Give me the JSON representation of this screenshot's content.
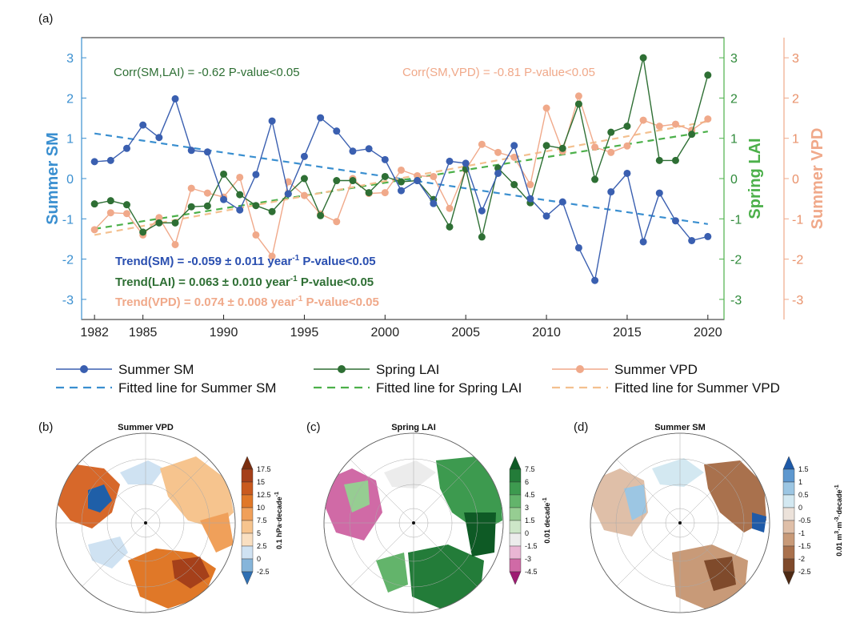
{
  "panel_labels": {
    "a": "(a)",
    "b": "(b)",
    "c": "(c)",
    "d": "(d)"
  },
  "chart_data": {
    "type": "line",
    "x": [
      1982,
      1983,
      1984,
      1985,
      1986,
      1987,
      1988,
      1989,
      1990,
      1991,
      1992,
      1993,
      1994,
      1995,
      1996,
      1997,
      1998,
      1999,
      2000,
      2001,
      2002,
      2003,
      2004,
      2005,
      2006,
      2007,
      2008,
      2009,
      2010,
      2011,
      2012,
      2013,
      2014,
      2015,
      2016,
      2017,
      2018,
      2019,
      2020
    ],
    "xlim": [
      1981.2,
      2021
    ],
    "xticks": [
      1982,
      1985,
      1990,
      1995,
      2000,
      2005,
      2010,
      2015,
      2020
    ],
    "xtick_labels": [
      "1982",
      "1985",
      "1990",
      "1995",
      "2000",
      "2005",
      "2010",
      "2015",
      "2020"
    ],
    "left_axis": {
      "label": "Summer SM",
      "ticks": [
        3,
        2,
        1,
        0,
        -1,
        -2,
        -3
      ],
      "tick_labels": [
        "3",
        "2",
        "1",
        "0",
        "-1",
        "-2",
        "-3"
      ],
      "color": "#3a8fd0"
    },
    "right_axis_1": {
      "label": "Spring LAI",
      "ticks": [
        3,
        2,
        1,
        0,
        -1,
        -2,
        -3
      ],
      "tick_labels": [
        "3",
        "2",
        "1",
        "0",
        "-1",
        "-2",
        "-3"
      ],
      "color": "#2f8a3a"
    },
    "right_axis_2": {
      "label": "Summer VPD",
      "ticks": [
        3,
        2,
        1,
        0,
        -1,
        -2,
        -3
      ],
      "tick_labels": [
        "3",
        "2",
        "1",
        "0",
        "-1",
        "-2",
        "-3"
      ],
      "color": "#e9916a"
    },
    "ylim": [
      -3.5,
      3.5
    ],
    "series": [
      {
        "name": "Summer SM",
        "color": "#3a5fb0",
        "values": [
          0.42,
          0.45,
          0.75,
          1.33,
          1.02,
          1.98,
          0.7,
          0.66,
          -0.52,
          -0.78,
          0.1,
          1.43,
          -0.38,
          0.55,
          1.51,
          1.18,
          0.68,
          0.74,
          0.47,
          -0.3,
          -0.05,
          -0.62,
          0.43,
          0.38,
          -0.8,
          0.13,
          0.82,
          -0.5,
          -0.93,
          -0.58,
          -1.72,
          -2.53,
          -0.33,
          0.13,
          -1.57,
          -0.36,
          -1.05,
          -1.54,
          -1.44
        ]
      },
      {
        "name": "Spring LAI",
        "color": "#2e6f34",
        "values": [
          -0.63,
          -0.55,
          -0.65,
          -1.33,
          -1.1,
          -1.1,
          -0.7,
          -0.68,
          0.11,
          -0.4,
          -0.67,
          -0.82,
          -0.38,
          0.0,
          -0.92,
          -0.05,
          -0.05,
          -0.35,
          0.05,
          -0.08,
          -0.05,
          -0.52,
          -1.2,
          0.24,
          -1.45,
          0.26,
          -0.15,
          -0.6,
          0.82,
          0.75,
          1.85,
          -0.02,
          1.15,
          1.3,
          3.0,
          0.45,
          0.45,
          1.1,
          2.57
        ]
      },
      {
        "name": "Summer VPD",
        "color": "#f0a98a",
        "values": [
          -1.27,
          -0.85,
          -0.87,
          -1.4,
          -0.97,
          -1.64,
          -0.24,
          -0.36,
          -0.46,
          0.03,
          -1.4,
          -1.93,
          -0.08,
          -0.42,
          -0.88,
          -1.07,
          0.0,
          -0.37,
          -0.35,
          0.21,
          0.07,
          0.05,
          -0.74,
          0.22,
          0.85,
          0.65,
          0.53,
          -0.15,
          1.75,
          0.68,
          2.05,
          0.78,
          0.65,
          0.81,
          1.45,
          1.3,
          1.35,
          1.2,
          1.48
        ]
      }
    ],
    "fitted_lines": [
      {
        "name": "Fitted line for Summer SM",
        "color": "#3a8fd0",
        "x": [
          1982,
          2020
        ],
        "y": [
          1.12,
          -1.13
        ]
      },
      {
        "name": "Fitted line for Spring LAI",
        "color": "#4cb04a",
        "x": [
          1982,
          2020
        ],
        "y": [
          -1.25,
          1.17
        ]
      },
      {
        "name": "Fitted line for Summer VPD",
        "color": "#f3c08f",
        "x": [
          1982,
          2020
        ],
        "y": [
          -1.4,
          1.42
        ]
      }
    ],
    "annotations": {
      "corr_sm_lai": {
        "text": "Corr(SM,LAI) = -0.62   P-value<0.05",
        "color": "#2e6f34"
      },
      "corr_sm_vpd": {
        "text": "Corr(SM,VPD) = -0.81   P-value<0.05",
        "color": "#f0a98a"
      },
      "trend_sm": {
        "main": "Trend(SM) = -0.059 ± 0.011 year",
        "sup": "-1",
        "p": "   P-value<0.05",
        "color": "#2a4fb0"
      },
      "trend_lai": {
        "main": "Trend(LAI) = 0.063 ± 0.010 year",
        "sup": "-1",
        "p": "   P-value<0.05",
        "color": "#2e6f34"
      },
      "trend_vpd": {
        "main": "Trend(VPD) = 0.074 ± 0.008 year",
        "sup": "-1",
        "p": "   P-value<0.05",
        "color": "#f0a98a"
      }
    },
    "legend": [
      {
        "label": "Summer SM",
        "kind": "line-marker",
        "color": "#3a5fb0"
      },
      {
        "label": "Spring LAI",
        "kind": "line-marker",
        "color": "#2e6f34"
      },
      {
        "label": "Summer VPD",
        "kind": "line-marker",
        "color": "#f0a98a"
      },
      {
        "label": "Fitted line for Summer SM",
        "kind": "dashed",
        "color": "#3a8fd0"
      },
      {
        "label": "Fitted line for Spring LAI",
        "kind": "dashed",
        "color": "#4cb04a"
      },
      {
        "label": "Fitted line for Summer VPD",
        "kind": "dashed",
        "color": "#f3c08f"
      }
    ]
  },
  "maps": [
    {
      "id": "b",
      "title": "Summer VPD",
      "colorbar": {
        "ticks": [
          "17.5",
          "15",
          "12.5",
          "10",
          "7.5",
          "5",
          "2.5",
          "0",
          "-2.5"
        ],
        "unit": "0.1 hPa·decade",
        "unit_sup": "-1",
        "colors": [
          "#7a2e10",
          "#a5401a",
          "#c95a1e",
          "#e07828",
          "#f0a05a",
          "#f6c48e",
          "#f9dfc1",
          "#cfe2f2",
          "#86b5da",
          "#2f6fb2"
        ]
      }
    },
    {
      "id": "c",
      "title": "Spring LAI",
      "colorbar": {
        "ticks": [
          "7.5",
          "6",
          "4.5",
          "3",
          "1.5",
          "0",
          "-1.5",
          "-3",
          "-4.5"
        ],
        "unit": "0.01 decade",
        "unit_sup": "-1",
        "colors": [
          "#0e5a25",
          "#237c39",
          "#3d9a4f",
          "#63b46b",
          "#96cd92",
          "#cde6c8",
          "#ececec",
          "#e9b6d4",
          "#d06aa6",
          "#9e1a72"
        ]
      }
    },
    {
      "id": "d",
      "title": "Summer SM",
      "colorbar": {
        "ticks": [
          "1.5",
          "1",
          "0.5",
          "0",
          "-0.5",
          "-1",
          "-1.5",
          "-2",
          "-2.5"
        ],
        "unit": "0.01 m",
        "unit_sup": "3",
        "unit_rest": "·m",
        "unit_sup2": "-3",
        "unit_rest2": "·decade",
        "unit_sup3": "-1",
        "colors": [
          "#1e5aa8",
          "#5e98cf",
          "#9cc6e3",
          "#d3e8f1",
          "#ece2da",
          "#dfbfa8",
          "#c89a78",
          "#a9714d",
          "#7f4a2b",
          "#4e2a14"
        ]
      }
    }
  ]
}
